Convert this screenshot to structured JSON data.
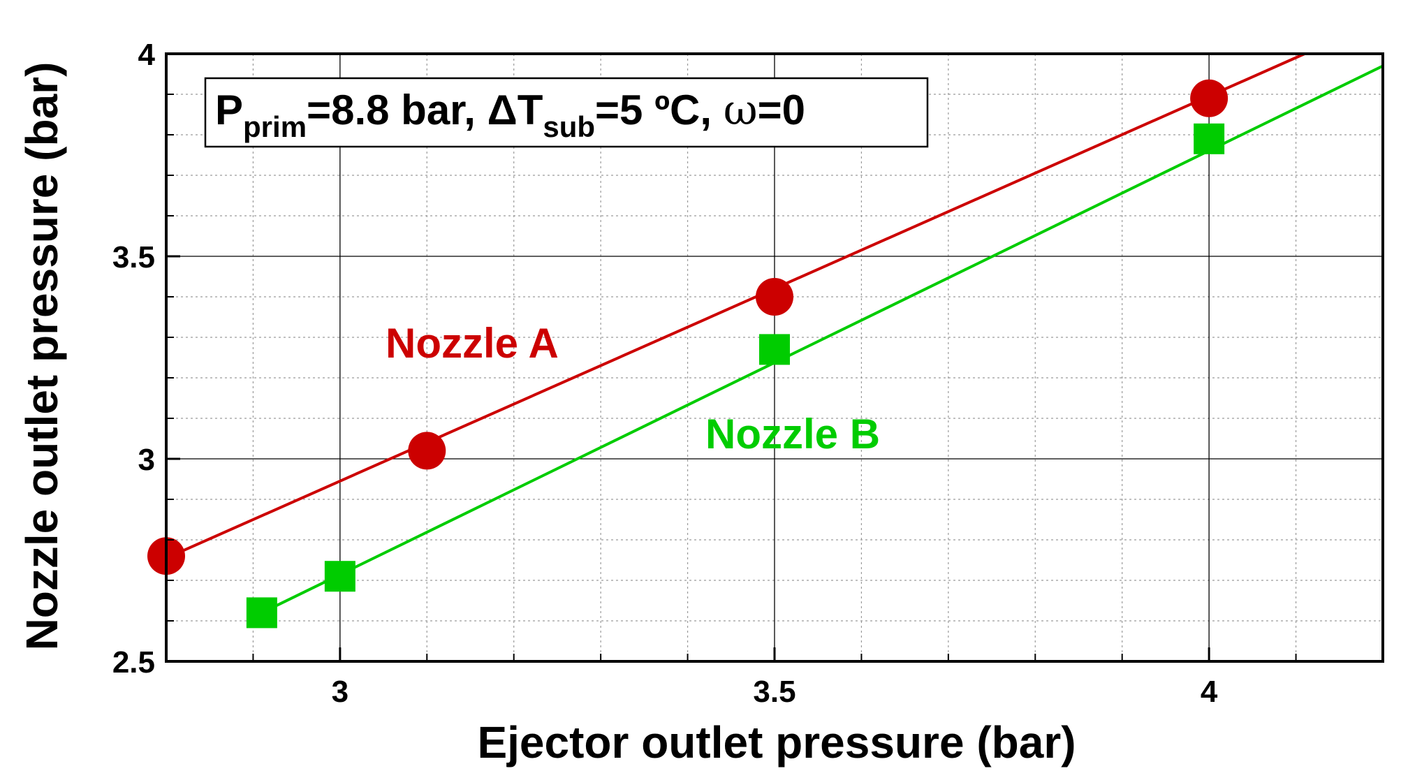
{
  "chart_data": {
    "type": "scatter",
    "xlabel": "Ejector outlet pressure (bar)",
    "ylabel": "Nozzle outlet pressure (bar)",
    "xlim": [
      2.8,
      4.2
    ],
    "ylim": [
      2.5,
      4.0
    ],
    "x_ticks": [
      3,
      3.5,
      4
    ],
    "x_tick_labels": [
      "3",
      "3.5",
      "4"
    ],
    "y_ticks": [
      2.5,
      3,
      3.5,
      4
    ],
    "y_tick_labels": [
      "2.5",
      "3",
      "3.5",
      "4"
    ],
    "x_minor_step": 0.1,
    "y_minor_step": 0.1,
    "grid": true,
    "conditions": {
      "p_symbol": "P",
      "p_sub": "prim",
      "p_value": "=8.8 bar, ",
      "dt_symbol": "ΔT",
      "dt_sub": "sub",
      "dt_value": "=5 ºC, ",
      "omega_symbol": "ω",
      "omega_value": "=0"
    },
    "series": [
      {
        "name": "Nozzle A",
        "color": "#cc0000",
        "marker": "circle",
        "x": [
          2.8,
          3.1,
          3.5,
          4.0
        ],
        "y": [
          2.76,
          3.02,
          3.4,
          3.89
        ],
        "fit_line": {
          "x": [
            2.8,
            4.11
          ],
          "y": [
            2.755,
            4.0
          ]
        }
      },
      {
        "name": "Nozzle B",
        "color": "#00cc00",
        "marker": "square",
        "x": [
          2.91,
          3.0,
          3.5,
          4.0
        ],
        "y": [
          2.62,
          2.71,
          3.27,
          3.79
        ],
        "fit_line": {
          "x": [
            2.91,
            4.2
          ],
          "y": [
            2.62,
            3.97
          ]
        }
      }
    ]
  }
}
